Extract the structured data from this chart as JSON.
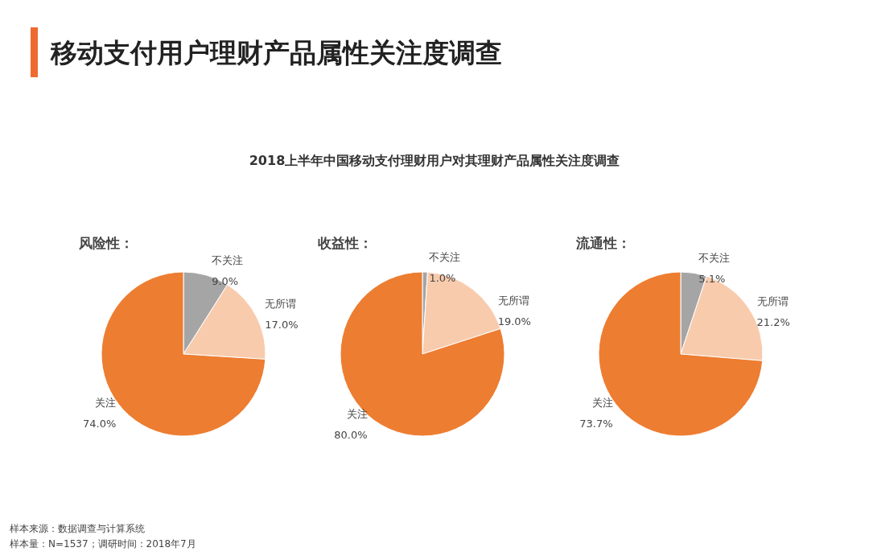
{
  "chart_data": [
    {
      "type": "other",
      "title": "移动支付用户理财产品属性关注度调查",
      "subtitle": "2018上半年中国移动支付理财用户对其理财产品属性关注度调查",
      "annotations": [
        "样本来源：数据调查与计算系统",
        "样本量：N=1537；调研时间：2018年7月"
      ]
    },
    {
      "type": "pie",
      "title": "风险性：",
      "categories": [
        "不关注",
        "无所谓",
        "关注"
      ],
      "values": [
        9.0,
        17.0,
        74.0
      ],
      "value_labels": [
        "9.0%",
        "17.0%",
        "74.0%"
      ],
      "colors": [
        "#a5a5a5",
        "#f8cbad",
        "#ed7d31"
      ]
    },
    {
      "type": "pie",
      "title": "收益性：",
      "categories": [
        "不关注",
        "无所谓",
        "关注"
      ],
      "values": [
        1.0,
        19.0,
        80.0
      ],
      "value_labels": [
        "1.0%",
        "19.0%",
        "80.0%"
      ],
      "colors": [
        "#a5a5a5",
        "#f8cbad",
        "#ed7d31"
      ]
    },
    {
      "type": "pie",
      "title": "流通性：",
      "categories": [
        "不关注",
        "无所谓",
        "关注"
      ],
      "values": [
        5.1,
        21.2,
        73.7
      ],
      "value_labels": [
        "5.1%",
        "21.2%",
        "73.7%"
      ],
      "colors": [
        "#a5a5a5",
        "#f8cbad",
        "#ed7d31"
      ]
    }
  ]
}
